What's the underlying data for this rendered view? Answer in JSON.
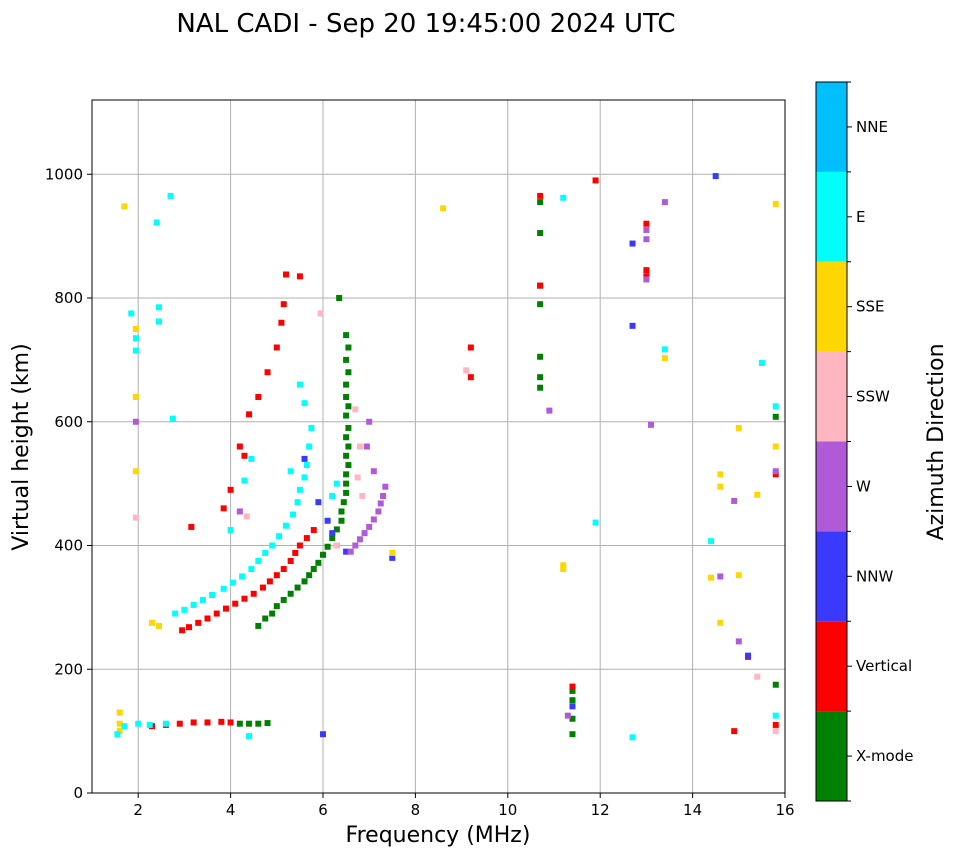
{
  "chart_data": {
    "type": "scatter",
    "title": "NAL CADI - Sep 20 19:45:00 2024 UTC",
    "xlabel": "Frequency (MHz)",
    "ylabel": "Virtual height (km)",
    "xlim": [
      1,
      16
    ],
    "ylim": [
      0,
      1120
    ],
    "xticks": [
      2,
      4,
      6,
      8,
      10,
      12,
      14,
      16
    ],
    "yticks": [
      0,
      200,
      400,
      600,
      800,
      1000
    ],
    "grid": true,
    "colorbar": {
      "title": "Azimuth Direction",
      "categories": [
        {
          "name": "X-mode",
          "color": "#008000"
        },
        {
          "name": "Vertical",
          "color": "#ff0000"
        },
        {
          "name": "NNW",
          "color": "#3a3aff"
        },
        {
          "name": "W",
          "color": "#b05ad8"
        },
        {
          "name": "SSW",
          "color": "#ffb6c1"
        },
        {
          "name": "SSE",
          "color": "#ffd700"
        },
        {
          "name": "E",
          "color": "#00ffff"
        },
        {
          "name": "NNE",
          "color": "#00bfff"
        }
      ]
    },
    "series": [
      {
        "name": "X-mode",
        "points": [
          [
            4.6,
            270
          ],
          [
            4.75,
            282
          ],
          [
            4.9,
            290
          ],
          [
            5.0,
            302
          ],
          [
            5.15,
            312
          ],
          [
            5.3,
            322
          ],
          [
            5.45,
            332
          ],
          [
            5.6,
            342
          ],
          [
            5.7,
            352
          ],
          [
            5.8,
            362
          ],
          [
            5.9,
            372
          ],
          [
            6.0,
            385
          ],
          [
            6.1,
            398
          ],
          [
            6.2,
            412
          ],
          [
            6.3,
            426
          ],
          [
            6.4,
            440
          ],
          [
            6.4,
            455
          ],
          [
            6.45,
            470
          ],
          [
            6.5,
            485
          ],
          [
            6.5,
            500
          ],
          [
            6.5,
            515
          ],
          [
            6.55,
            530
          ],
          [
            6.5,
            545
          ],
          [
            6.55,
            560
          ],
          [
            6.5,
            575
          ],
          [
            6.55,
            590
          ],
          [
            6.5,
            610
          ],
          [
            6.55,
            625
          ],
          [
            6.5,
            640
          ],
          [
            6.5,
            660
          ],
          [
            6.55,
            680
          ],
          [
            6.5,
            700
          ],
          [
            6.55,
            720
          ],
          [
            6.5,
            740
          ],
          [
            6.35,
            800
          ],
          [
            4.2,
            112
          ],
          [
            4.4,
            112
          ],
          [
            4.6,
            112
          ],
          [
            4.8,
            113
          ],
          [
            10.7,
            955
          ],
          [
            10.7,
            905
          ],
          [
            10.7,
            820
          ],
          [
            10.7,
            790
          ],
          [
            10.7,
            705
          ],
          [
            10.7,
            672
          ],
          [
            10.7,
            655
          ],
          [
            11.4,
            165
          ],
          [
            11.4,
            150
          ],
          [
            11.4,
            120
          ],
          [
            11.4,
            95
          ],
          [
            15.8,
            608
          ],
          [
            15.8,
            175
          ]
        ]
      },
      {
        "name": "Vertical",
        "points": [
          [
            2.95,
            263
          ],
          [
            3.1,
            268
          ],
          [
            3.3,
            275
          ],
          [
            3.5,
            282
          ],
          [
            3.7,
            290
          ],
          [
            3.9,
            298
          ],
          [
            4.1,
            306
          ],
          [
            4.3,
            314
          ],
          [
            4.5,
            322
          ],
          [
            4.7,
            332
          ],
          [
            4.85,
            342
          ],
          [
            5.0,
            352
          ],
          [
            5.15,
            362
          ],
          [
            5.3,
            375
          ],
          [
            5.4,
            388
          ],
          [
            5.5,
            400
          ],
          [
            5.65,
            412
          ],
          [
            5.8,
            425
          ],
          [
            3.85,
            460
          ],
          [
            4.0,
            490
          ],
          [
            4.2,
            560
          ],
          [
            4.4,
            612
          ],
          [
            4.6,
            640
          ],
          [
            4.8,
            680
          ],
          [
            5.0,
            720
          ],
          [
            5.1,
            760
          ],
          [
            5.15,
            790
          ],
          [
            5.2,
            838
          ],
          [
            5.5,
            835
          ],
          [
            2.3,
            108
          ],
          [
            2.6,
            110
          ],
          [
            2.9,
            112
          ],
          [
            3.2,
            114
          ],
          [
            3.5,
            114
          ],
          [
            3.8,
            115
          ],
          [
            4.0,
            114
          ],
          [
            3.15,
            430
          ],
          [
            4.3,
            545
          ],
          [
            9.2,
            720
          ],
          [
            9.2,
            672
          ],
          [
            11.9,
            990
          ],
          [
            10.7,
            965
          ],
          [
            10.7,
            820
          ],
          [
            11.4,
            172
          ],
          [
            13.0,
            920
          ],
          [
            13.0,
            845
          ],
          [
            13.0,
            835
          ],
          [
            15.2,
            220
          ],
          [
            14.9,
            100
          ],
          [
            15.8,
            110
          ],
          [
            15.8,
            515
          ]
        ]
      },
      {
        "name": "NNW",
        "points": [
          [
            5.6,
            540
          ],
          [
            5.9,
            470
          ],
          [
            6.1,
            440
          ],
          [
            6.2,
            420
          ],
          [
            6.3,
            400
          ],
          [
            6.5,
            390
          ],
          [
            6.0,
            95
          ],
          [
            7.5,
            380
          ],
          [
            12.7,
            755
          ],
          [
            12.7,
            888
          ],
          [
            14.5,
            997
          ],
          [
            15.2,
            222
          ],
          [
            11.4,
            140
          ]
        ]
      },
      {
        "name": "W",
        "points": [
          [
            6.6,
            390
          ],
          [
            6.7,
            400
          ],
          [
            6.8,
            410
          ],
          [
            6.9,
            420
          ],
          [
            7.0,
            430
          ],
          [
            7.1,
            442
          ],
          [
            7.2,
            455
          ],
          [
            7.25,
            468
          ],
          [
            7.3,
            480
          ],
          [
            7.35,
            495
          ],
          [
            7.1,
            520
          ],
          [
            6.95,
            560
          ],
          [
            7.0,
            600
          ],
          [
            4.2,
            455
          ],
          [
            1.95,
            600
          ],
          [
            10.9,
            618
          ],
          [
            13.1,
            595
          ],
          [
            13.0,
            910
          ],
          [
            13.0,
            895
          ],
          [
            13.0,
            830
          ],
          [
            15.0,
            245
          ],
          [
            14.9,
            472
          ],
          [
            14.6,
            350
          ],
          [
            13.4,
            955
          ],
          [
            11.3,
            125
          ],
          [
            15.8,
            520
          ]
        ]
      },
      {
        "name": "SSW",
        "points": [
          [
            5.95,
            775
          ],
          [
            6.7,
            620
          ],
          [
            6.8,
            560
          ],
          [
            6.75,
            510
          ],
          [
            6.85,
            480
          ],
          [
            4.35,
            447
          ],
          [
            1.95,
            445
          ],
          [
            9.1,
            683
          ],
          [
            15.4,
            188
          ],
          [
            15.8,
            100
          ],
          [
            6.3,
            400
          ]
        ]
      },
      {
        "name": "SSE",
        "points": [
          [
            1.6,
            130
          ],
          [
            1.6,
            112
          ],
          [
            1.6,
            100
          ],
          [
            2.3,
            275
          ],
          [
            2.45,
            270
          ],
          [
            1.95,
            750
          ],
          [
            1.95,
            640
          ],
          [
            1.95,
            520
          ],
          [
            1.7,
            948
          ],
          [
            8.6,
            945
          ],
          [
            14.6,
            515
          ],
          [
            14.6,
            495
          ],
          [
            14.6,
            275
          ],
          [
            15.0,
            590
          ],
          [
            15.0,
            352
          ],
          [
            15.4,
            482
          ],
          [
            15.8,
            952
          ],
          [
            15.8,
            560
          ],
          [
            13.4,
            703
          ],
          [
            14.4,
            348
          ],
          [
            11.2,
            362
          ],
          [
            11.2,
            368
          ],
          [
            7.5,
            388
          ]
        ]
      },
      {
        "name": "E",
        "points": [
          [
            2.8,
            290
          ],
          [
            3.0,
            296
          ],
          [
            3.2,
            304
          ],
          [
            3.4,
            312
          ],
          [
            3.6,
            320
          ],
          [
            3.85,
            330
          ],
          [
            4.05,
            340
          ],
          [
            4.25,
            350
          ],
          [
            4.45,
            362
          ],
          [
            4.6,
            375
          ],
          [
            4.75,
            388
          ],
          [
            4.9,
            400
          ],
          [
            5.05,
            415
          ],
          [
            5.2,
            432
          ],
          [
            5.35,
            450
          ],
          [
            5.45,
            470
          ],
          [
            5.5,
            490
          ],
          [
            5.6,
            510
          ],
          [
            5.65,
            530
          ],
          [
            5.7,
            560
          ],
          [
            5.75,
            590
          ],
          [
            5.6,
            630
          ],
          [
            5.5,
            660
          ],
          [
            4.0,
            425
          ],
          [
            4.3,
            505
          ],
          [
            4.45,
            540
          ],
          [
            5.3,
            520
          ],
          [
            6.2,
            480
          ],
          [
            6.3,
            500
          ],
          [
            1.55,
            95
          ],
          [
            1.7,
            108
          ],
          [
            2.0,
            112
          ],
          [
            2.25,
            110
          ],
          [
            2.6,
            112
          ],
          [
            4.4,
            92
          ],
          [
            2.45,
            785
          ],
          [
            2.45,
            762
          ],
          [
            2.4,
            922
          ],
          [
            2.7,
            965
          ],
          [
            1.85,
            775
          ],
          [
            1.95,
            735
          ],
          [
            1.95,
            715
          ],
          [
            2.75,
            605
          ],
          [
            11.2,
            962
          ],
          [
            11.9,
            437
          ],
          [
            12.7,
            90
          ],
          [
            13.4,
            717
          ],
          [
            14.4,
            407
          ],
          [
            15.5,
            695
          ],
          [
            15.8,
            625
          ],
          [
            15.8,
            125
          ]
        ]
      }
    ]
  }
}
